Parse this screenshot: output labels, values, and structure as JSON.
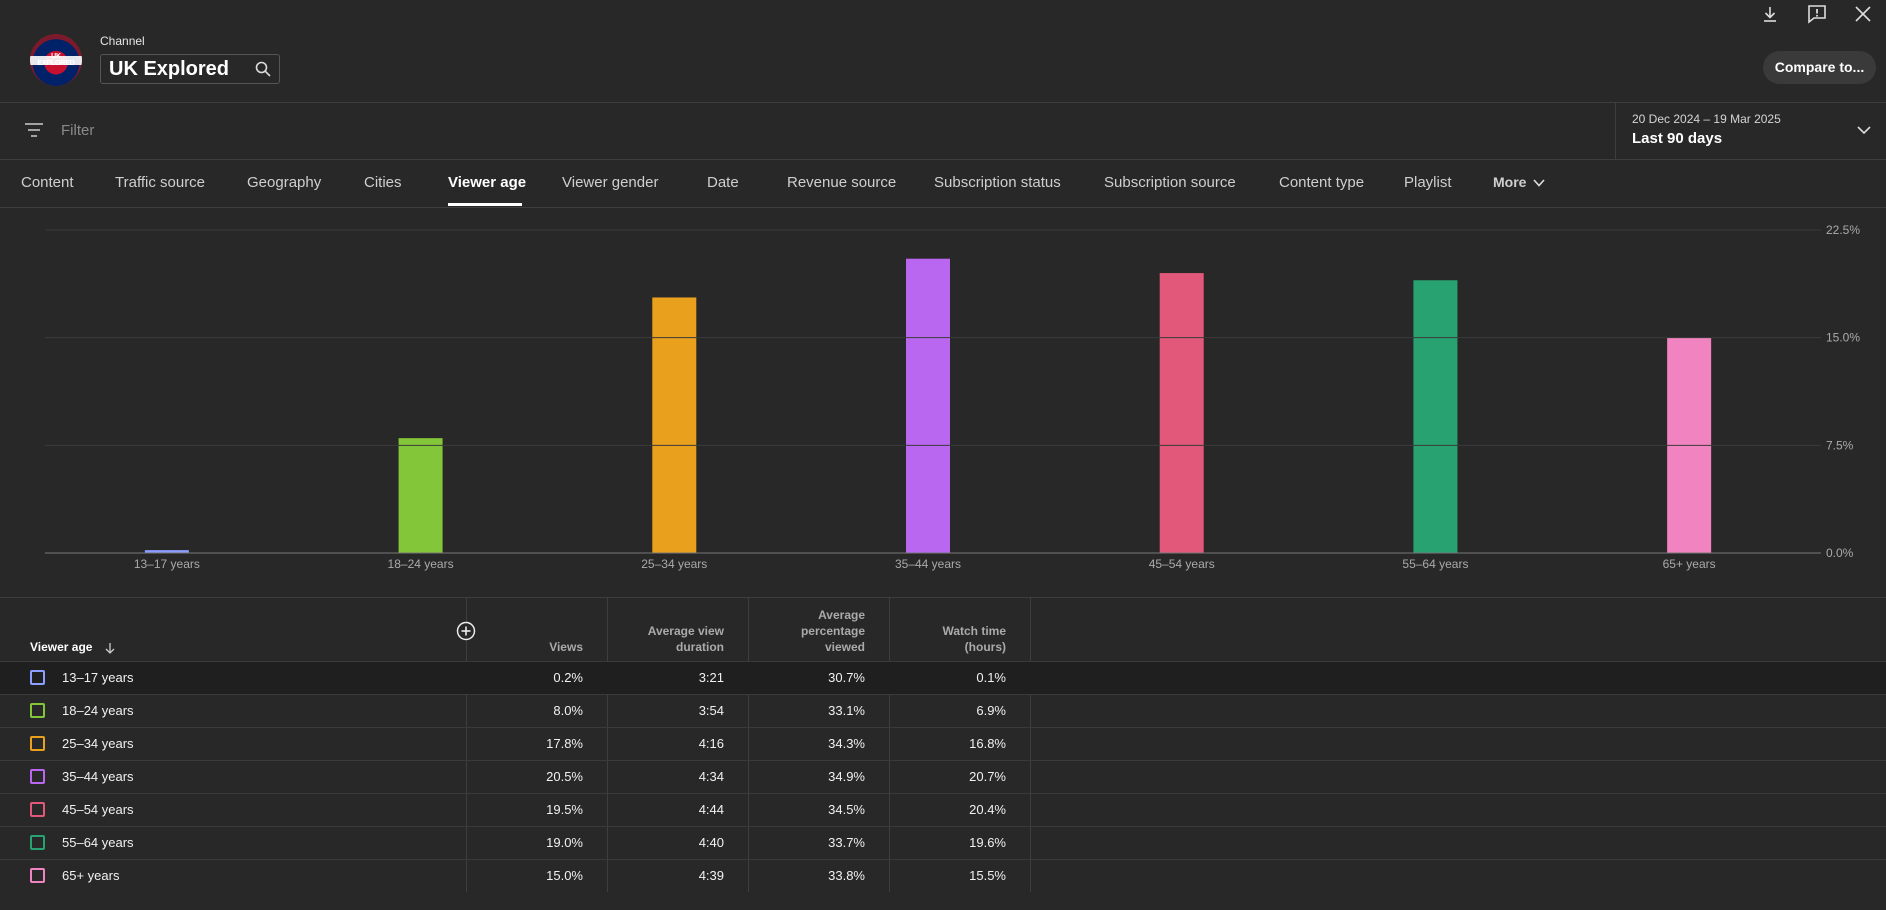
{
  "header": {
    "channel_label": "Channel",
    "channel_name": "UK Explored",
    "avatar_text": "UK EXPLORED",
    "compare_label": "Compare to..."
  },
  "filter": {
    "placeholder": "Filter"
  },
  "date": {
    "range": "20 Dec 2024 – 19 Mar 2025",
    "preset": "Last 90 days"
  },
  "tabs": [
    {
      "label": "Content"
    },
    {
      "label": "Traffic source"
    },
    {
      "label": "Geography"
    },
    {
      "label": "Cities"
    },
    {
      "label": "Viewer age",
      "active": true
    },
    {
      "label": "Viewer gender"
    },
    {
      "label": "Date"
    },
    {
      "label": "Revenue source"
    },
    {
      "label": "Subscription status"
    },
    {
      "label": "Subscription source"
    },
    {
      "label": "Content type"
    },
    {
      "label": "Playlist"
    },
    {
      "label": "More"
    }
  ],
  "chart_data": {
    "type": "bar",
    "categories": [
      "13–17 years",
      "18–24 years",
      "25–34 years",
      "35–44 years",
      "45–54 years",
      "55–64 years",
      "65+ years"
    ],
    "values": [
      0.2,
      8.0,
      17.8,
      20.5,
      19.5,
      19.0,
      15.0
    ],
    "colors": [
      "#8c9eff",
      "#84c639",
      "#e9a11d",
      "#b967f0",
      "#e2587a",
      "#28a271",
      "#f184c0"
    ],
    "yticks": [
      "0.0%",
      "7.5%",
      "15.0%",
      "22.5%"
    ],
    "ylim": [
      0,
      22.5
    ],
    "grid": true
  },
  "table": {
    "headers": {
      "dimension": "Viewer age",
      "views": "Views",
      "avg_duration": [
        "Average view",
        "duration"
      ],
      "avg_pct": [
        "Average",
        "percentage",
        "viewed"
      ],
      "watch_time": [
        "Watch time",
        "(hours)"
      ]
    },
    "rows": [
      {
        "label": "13–17 years",
        "views": "0.2%",
        "duration": "3:21",
        "pct": "30.7%",
        "watch": "0.1%"
      },
      {
        "label": "18–24 years",
        "views": "8.0%",
        "duration": "3:54",
        "pct": "33.1%",
        "watch": "6.9%"
      },
      {
        "label": "25–34 years",
        "views": "17.8%",
        "duration": "4:16",
        "pct": "34.3%",
        "watch": "16.8%"
      },
      {
        "label": "35–44 years",
        "views": "20.5%",
        "duration": "4:34",
        "pct": "34.9%",
        "watch": "20.7%"
      },
      {
        "label": "45–54 years",
        "views": "19.5%",
        "duration": "4:44",
        "pct": "34.5%",
        "watch": "20.4%"
      },
      {
        "label": "55–64 years",
        "views": "19.0%",
        "duration": "4:40",
        "pct": "33.7%",
        "watch": "19.6%"
      },
      {
        "label": "65+ years",
        "views": "15.0%",
        "duration": "4:39",
        "pct": "33.8%",
        "watch": "15.5%"
      }
    ]
  },
  "icons": [
    "download-icon",
    "feedback-icon",
    "close-icon",
    "search-icon",
    "filter-icon",
    "chevron-down-icon",
    "add-column-icon",
    "sort-arrow-icon"
  ]
}
